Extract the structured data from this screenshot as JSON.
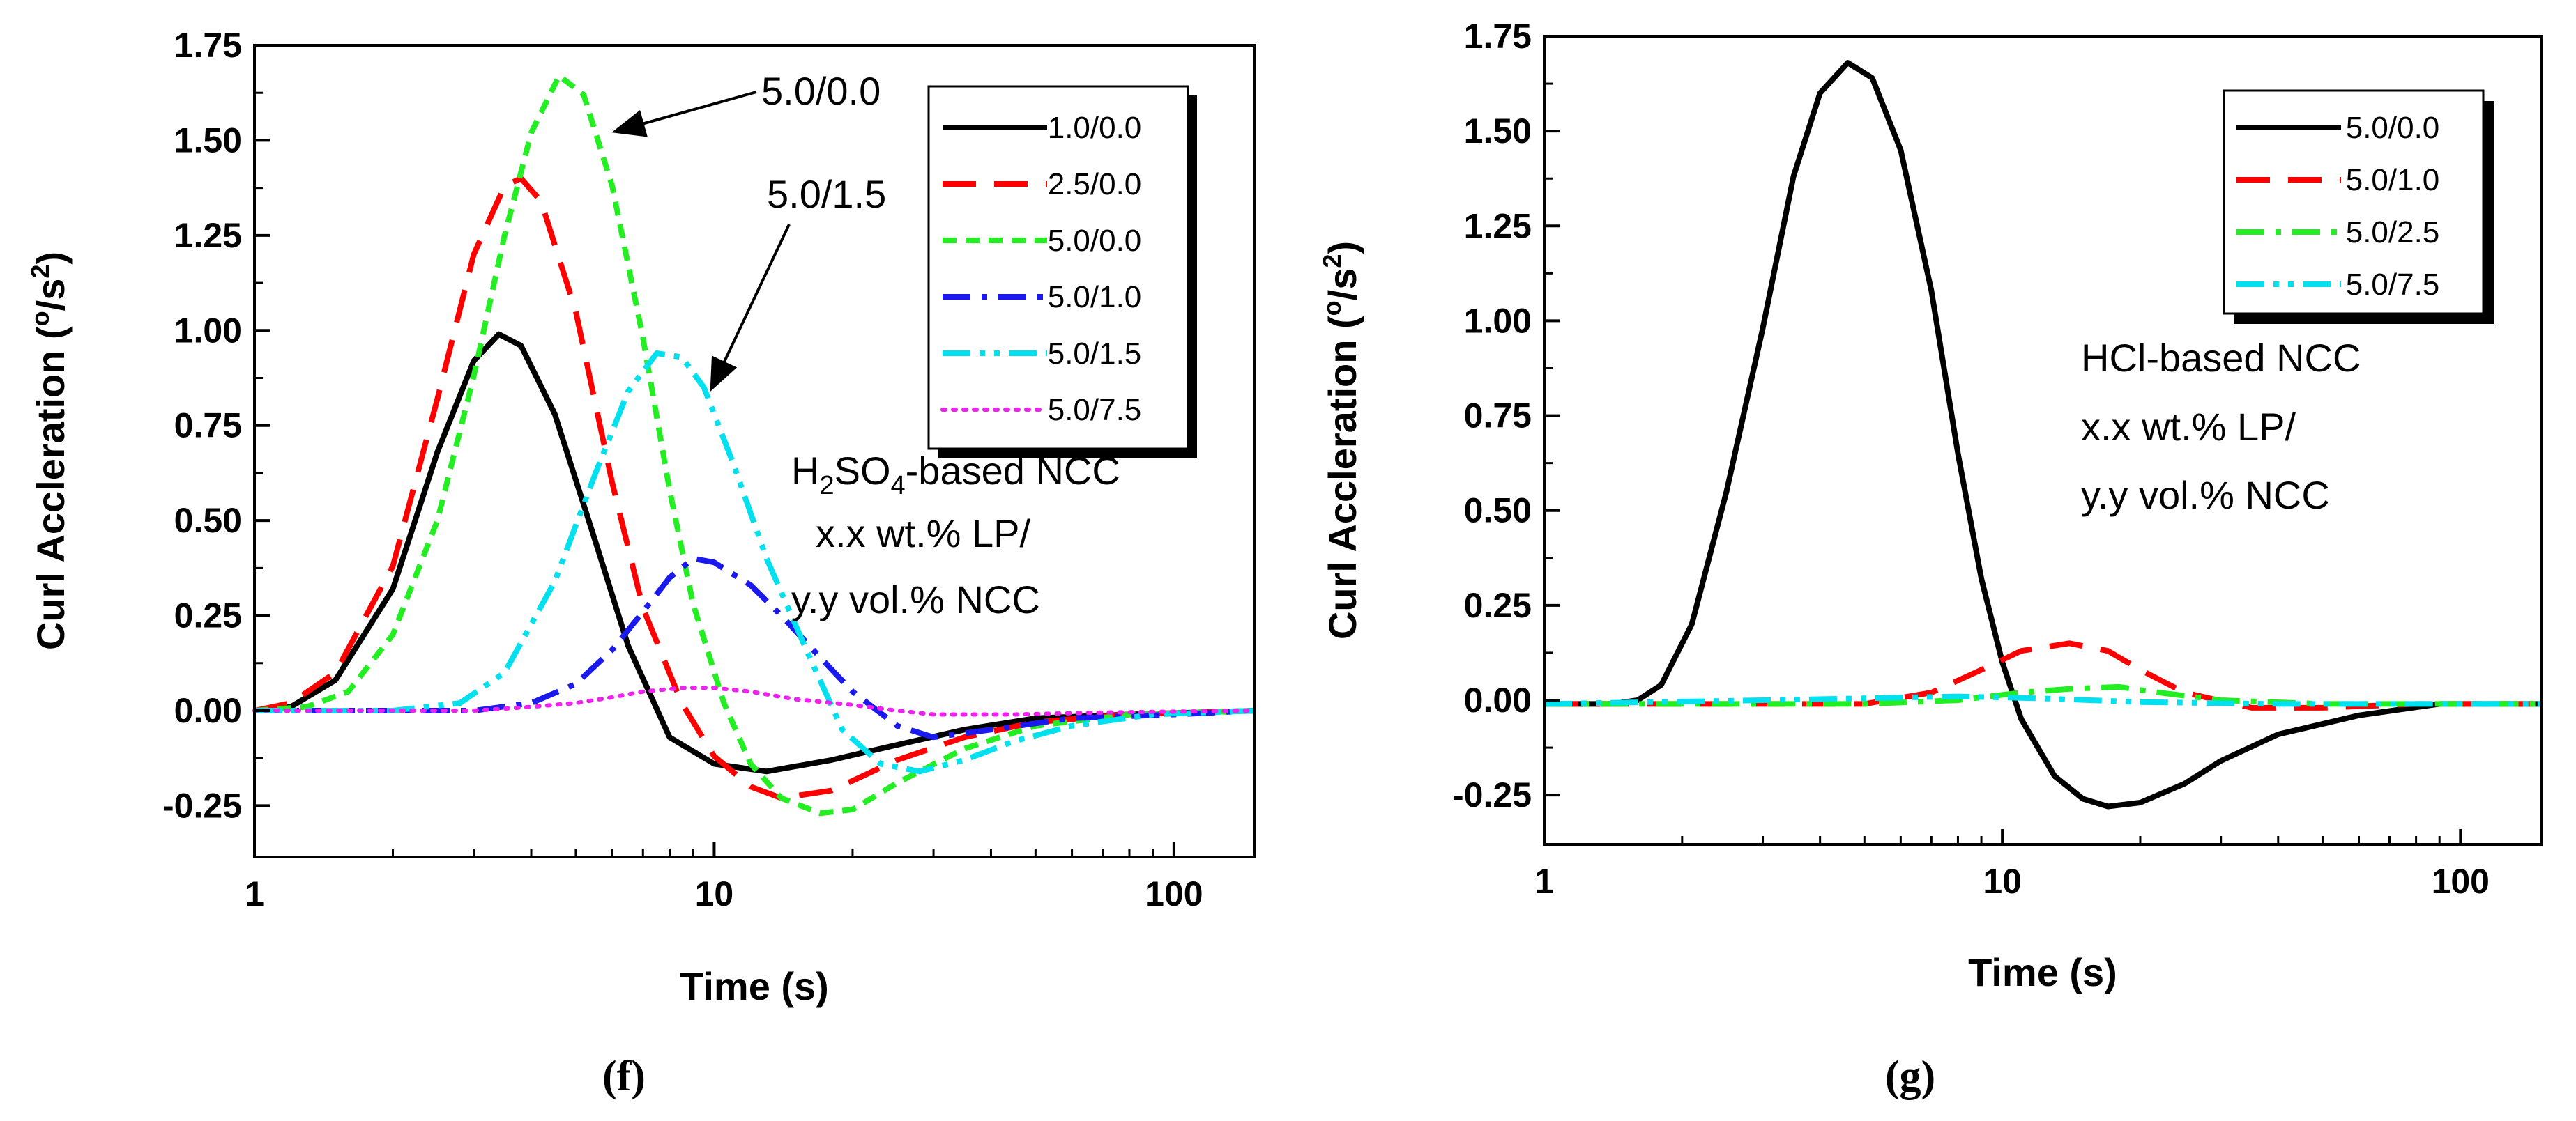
{
  "chart_data": [
    {
      "type": "line",
      "panel_label": "(f)",
      "xlabel": "Time (s)",
      "ylabel": "Curl Accleration (°/s²)",
      "xscale": "log",
      "xlim": [
        1,
        150
      ],
      "ylim": [
        -0.4,
        1.75
      ],
      "xticks": [
        {
          "value": 1,
          "label": "1"
        },
        {
          "value": 10,
          "label": "10"
        },
        {
          "value": 100,
          "label": "100"
        }
      ],
      "yticks": [
        {
          "value": -0.25,
          "label": "-0.25"
        },
        {
          "value": 0.0,
          "label": "0.00"
        },
        {
          "value": 0.25,
          "label": "0.25"
        },
        {
          "value": 0.5,
          "label": "0.50"
        },
        {
          "value": 0.75,
          "label": "0.75"
        },
        {
          "value": 1.0,
          "label": "1.00"
        },
        {
          "value": 1.25,
          "label": "1.25"
        },
        {
          "value": 1.5,
          "label": "1.50"
        },
        {
          "value": 1.75,
          "label": "1.75"
        }
      ],
      "legend_position": "top-right",
      "series": [
        {
          "name": "1.0/0.0",
          "color": "#000000",
          "dash": "solid",
          "points": [
            [
              1,
              0
            ],
            [
              1.2,
              0.01
            ],
            [
              1.5,
              0.08
            ],
            [
              2,
              0.32
            ],
            [
              2.5,
              0.68
            ],
            [
              3,
              0.92
            ],
            [
              3.4,
              0.99
            ],
            [
              3.8,
              0.96
            ],
            [
              4.5,
              0.78
            ],
            [
              5.5,
              0.45
            ],
            [
              6.5,
              0.17
            ],
            [
              8,
              -0.07
            ],
            [
              10,
              -0.14
            ],
            [
              13,
              -0.16
            ],
            [
              18,
              -0.13
            ],
            [
              25,
              -0.09
            ],
            [
              35,
              -0.05
            ],
            [
              50,
              -0.02
            ],
            [
              80,
              -0.01
            ],
            [
              150,
              0
            ]
          ]
        },
        {
          "name": "2.5/0.0",
          "color": "#ff0000",
          "dash": "long-dash",
          "points": [
            [
              1,
              0
            ],
            [
              1.2,
              0.02
            ],
            [
              1.5,
              0.1
            ],
            [
              2,
              0.38
            ],
            [
              2.5,
              0.82
            ],
            [
              3,
              1.2
            ],
            [
              3.5,
              1.38
            ],
            [
              3.8,
              1.4
            ],
            [
              4.2,
              1.34
            ],
            [
              5,
              1.05
            ],
            [
              6,
              0.6
            ],
            [
              7,
              0.27
            ],
            [
              8.5,
              0.02
            ],
            [
              10,
              -0.12
            ],
            [
              12,
              -0.2
            ],
            [
              14,
              -0.23
            ],
            [
              18,
              -0.21
            ],
            [
              25,
              -0.13
            ],
            [
              35,
              -0.07
            ],
            [
              50,
              -0.03
            ],
            [
              80,
              -0.01
            ],
            [
              150,
              0
            ]
          ]
        },
        {
          "name": "5.0/0.0",
          "color": "#22ee22",
          "dash": "short-dash",
          "points": [
            [
              1,
              0
            ],
            [
              1.3,
              0.01
            ],
            [
              1.6,
              0.05
            ],
            [
              2,
              0.2
            ],
            [
              2.5,
              0.5
            ],
            [
              3,
              0.88
            ],
            [
              3.5,
              1.25
            ],
            [
              4,
              1.52
            ],
            [
              4.6,
              1.67
            ],
            [
              5.2,
              1.62
            ],
            [
              6,
              1.38
            ],
            [
              7,
              0.98
            ],
            [
              8,
              0.58
            ],
            [
              9,
              0.28
            ],
            [
              10.5,
              0.02
            ],
            [
              12,
              -0.14
            ],
            [
              14,
              -0.23
            ],
            [
              17,
              -0.27
            ],
            [
              20,
              -0.26
            ],
            [
              25,
              -0.19
            ],
            [
              35,
              -0.1
            ],
            [
              50,
              -0.04
            ],
            [
              80,
              -0.01
            ],
            [
              150,
              0
            ]
          ]
        },
        {
          "name": "5.0/1.0",
          "color": "#1a1aee",
          "dash": "dash-dot",
          "points": [
            [
              1,
              0
            ],
            [
              2,
              0
            ],
            [
              3,
              0
            ],
            [
              4,
              0.02
            ],
            [
              5,
              0.07
            ],
            [
              6,
              0.16
            ],
            [
              7,
              0.26
            ],
            [
              8,
              0.35
            ],
            [
              9,
              0.4
            ],
            [
              10,
              0.39
            ],
            [
              12,
              0.33
            ],
            [
              14,
              0.25
            ],
            [
              17,
              0.14
            ],
            [
              20,
              0.05
            ],
            [
              25,
              -0.04
            ],
            [
              30,
              -0.07
            ],
            [
              40,
              -0.05
            ],
            [
              60,
              -0.02
            ],
            [
              100,
              -0.01
            ],
            [
              150,
              0
            ]
          ]
        },
        {
          "name": "5.0/1.5",
          "color": "#00e0ee",
          "dash": "dash-dot-dot",
          "points": [
            [
              1,
              0
            ],
            [
              2,
              0
            ],
            [
              2.8,
              0.02
            ],
            [
              3.5,
              0.1
            ],
            [
              4.5,
              0.34
            ],
            [
              5.5,
              0.62
            ],
            [
              6.5,
              0.84
            ],
            [
              7.5,
              0.94
            ],
            [
              8.5,
              0.93
            ],
            [
              9.5,
              0.85
            ],
            [
              11,
              0.65
            ],
            [
              13,
              0.4
            ],
            [
              16,
              0.15
            ],
            [
              19,
              -0.05
            ],
            [
              23,
              -0.14
            ],
            [
              28,
              -0.16
            ],
            [
              35,
              -0.13
            ],
            [
              45,
              -0.08
            ],
            [
              60,
              -0.04
            ],
            [
              90,
              -0.01
            ],
            [
              150,
              0
            ]
          ]
        },
        {
          "name": "5.0/7.5",
          "color": "#ee22ee",
          "dash": "dot",
          "points": [
            [
              1,
              0
            ],
            [
              2,
              0
            ],
            [
              3,
              0
            ],
            [
              4,
              0.01
            ],
            [
              5,
              0.02
            ],
            [
              6,
              0.035
            ],
            [
              7,
              0.05
            ],
            [
              8.5,
              0.06
            ],
            [
              10,
              0.06
            ],
            [
              12,
              0.05
            ],
            [
              15,
              0.03
            ],
            [
              20,
              0.015
            ],
            [
              25,
              0
            ],
            [
              30,
              -0.01
            ],
            [
              45,
              -0.01
            ],
            [
              70,
              -0.005
            ],
            [
              150,
              0
            ]
          ]
        }
      ],
      "annotations": [
        {
          "text": "5.0/0.0",
          "target_series": "5.0/0.0"
        },
        {
          "text": "5.0/1.5",
          "target_series": "5.0/1.5"
        },
        {
          "type": "ncc_label",
          "formula": {
            "prefix": "H",
            "sub1": "2",
            "mid": "SO",
            "sub2": "4",
            "suffix": "-based NCC"
          }
        },
        {
          "text": "x.x wt.% LP/"
        },
        {
          "text": "y.y vol.% NCC"
        }
      ]
    },
    {
      "type": "line",
      "panel_label": "(g)",
      "xlabel": "Time (s)",
      "ylabel": "Curl Accleration (°/s²)",
      "xscale": "log",
      "xlim": [
        1,
        150
      ],
      "ylim": [
        -0.4,
        1.75
      ],
      "xticks": [
        {
          "value": 1,
          "label": "1"
        },
        {
          "value": 10,
          "label": "10"
        },
        {
          "value": 100,
          "label": "100"
        }
      ],
      "yticks": [
        {
          "value": -0.25,
          "label": "-0.25"
        },
        {
          "value": 0.0,
          "label": "0.00"
        },
        {
          "value": 0.25,
          "label": "0.25"
        },
        {
          "value": 0.5,
          "label": "0.50"
        },
        {
          "value": 0.75,
          "label": "0.75"
        },
        {
          "value": 1.0,
          "label": "1.00"
        },
        {
          "value": 1.25,
          "label": "1.25"
        },
        {
          "value": 1.5,
          "label": "1.50"
        },
        {
          "value": 1.75,
          "label": "1.75"
        }
      ],
      "legend_position": "top-right",
      "series": [
        {
          "name": "5.0/0.0",
          "color": "#000000",
          "dash": "solid",
          "points": [
            [
              1,
              -0.01
            ],
            [
              1.4,
              -0.01
            ],
            [
              1.6,
              0
            ],
            [
              1.8,
              0.04
            ],
            [
              2.1,
              0.2
            ],
            [
              2.5,
              0.55
            ],
            [
              3,
              0.98
            ],
            [
              3.5,
              1.38
            ],
            [
              4,
              1.6
            ],
            [
              4.6,
              1.68
            ],
            [
              5.2,
              1.64
            ],
            [
              6,
              1.45
            ],
            [
              7,
              1.08
            ],
            [
              8,
              0.65
            ],
            [
              9,
              0.32
            ],
            [
              10,
              0.1
            ],
            [
              11,
              -0.05
            ],
            [
              13,
              -0.2
            ],
            [
              15,
              -0.26
            ],
            [
              17,
              -0.28
            ],
            [
              20,
              -0.27
            ],
            [
              25,
              -0.22
            ],
            [
              30,
              -0.16
            ],
            [
              40,
              -0.09
            ],
            [
              60,
              -0.04
            ],
            [
              90,
              -0.01
            ],
            [
              150,
              -0.01
            ]
          ]
        },
        {
          "name": "5.0/1.0",
          "color": "#ff0000",
          "dash": "long-dash",
          "points": [
            [
              1,
              -0.01
            ],
            [
              3,
              -0.01
            ],
            [
              5,
              -0.01
            ],
            [
              7,
              0.02
            ],
            [
              9,
              0.08
            ],
            [
              11,
              0.13
            ],
            [
              14,
              0.15
            ],
            [
              17,
              0.13
            ],
            [
              20,
              0.08
            ],
            [
              25,
              0.02
            ],
            [
              35,
              -0.02
            ],
            [
              50,
              -0.02
            ],
            [
              80,
              -0.01
            ],
            [
              150,
              -0.01
            ]
          ]
        },
        {
          "name": "5.0/2.5",
          "color": "#22ee22",
          "dash": "dash-dot",
          "points": [
            [
              1,
              -0.01
            ],
            [
              5,
              -0.01
            ],
            [
              8,
              0
            ],
            [
              11,
              0.02
            ],
            [
              14,
              0.03
            ],
            [
              18,
              0.035
            ],
            [
              22,
              0.02
            ],
            [
              30,
              0
            ],
            [
              50,
              -0.01
            ],
            [
              150,
              -0.01
            ]
          ]
        },
        {
          "name": "5.0/7.5",
          "color": "#00e0ee",
          "dash": "dash-dot-dot",
          "points": [
            [
              1,
              -0.01
            ],
            [
              3,
              0
            ],
            [
              5,
              0.005
            ],
            [
              8,
              0.01
            ],
            [
              12,
              0.005
            ],
            [
              20,
              -0.005
            ],
            [
              40,
              -0.01
            ],
            [
              150,
              -0.01
            ]
          ]
        }
      ],
      "annotations": [
        {
          "text": "HCl-based NCC"
        },
        {
          "text": "x.x wt.% LP/"
        },
        {
          "text": "y.y vol.% NCC"
        }
      ]
    }
  ]
}
